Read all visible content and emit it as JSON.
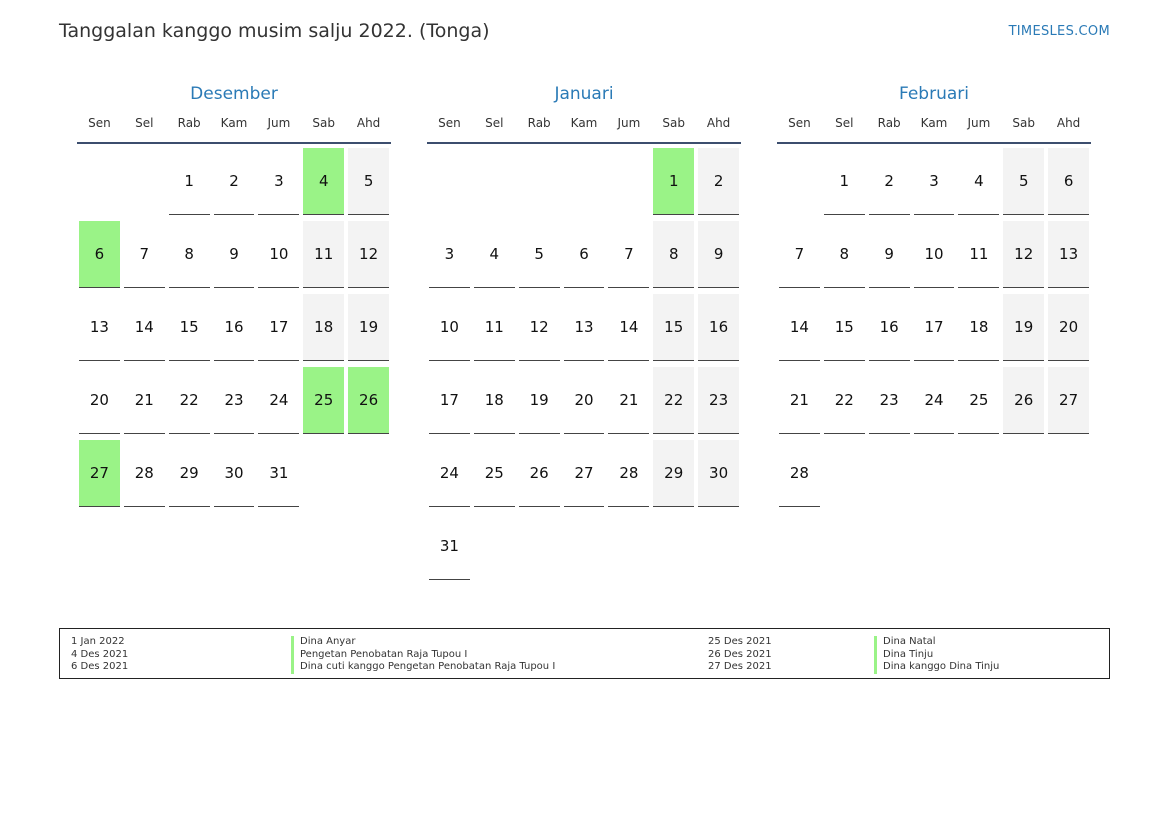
{
  "header": {
    "title": "Tanggalan kanggo musim salju 2022. (Tonga)",
    "site": "TIMESLES.COM"
  },
  "weekday_labels": [
    "Sen",
    "Sel",
    "Rab",
    "Kam",
    "Jum",
    "Sab",
    "Ahd"
  ],
  "colors": {
    "holiday": "#9af387",
    "weekend": "#f3f3f3",
    "accent": "#2a7ab6"
  },
  "months": [
    {
      "name": "Desember",
      "start_offset": 2,
      "days": 31,
      "holidays": [
        4,
        6,
        25,
        26,
        27
      ]
    },
    {
      "name": "Januari",
      "start_offset": 5,
      "days": 31,
      "holidays": [
        1
      ]
    },
    {
      "name": "Februari",
      "start_offset": 1,
      "days": 28,
      "holidays": []
    }
  ],
  "legend": {
    "left": [
      {
        "date": "1 Jan 2022",
        "name": "Dina Anyar"
      },
      {
        "date": "4 Des 2021",
        "name": "Pengetan Penobatan Raja Tupou I"
      },
      {
        "date": "6 Des 2021",
        "name": "Dina cuti kanggo Pengetan Penobatan Raja Tupou I"
      }
    ],
    "right": [
      {
        "date": "25 Des 2021",
        "name": "Dina Natal"
      },
      {
        "date": "26 Des 2021",
        "name": "Dina Tinju"
      },
      {
        "date": "27 Des 2021",
        "name": "Dina kanggo Dina Tinju"
      }
    ]
  }
}
